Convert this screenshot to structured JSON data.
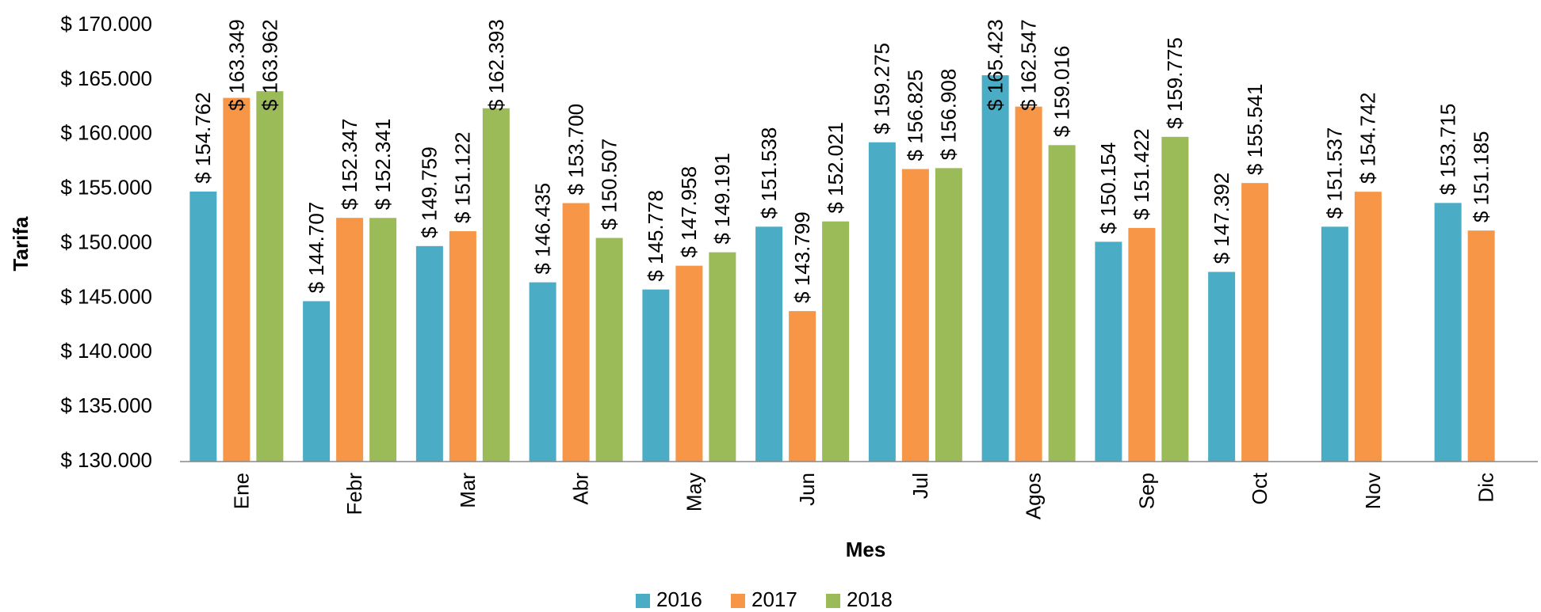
{
  "chart_data": {
    "type": "bar",
    "x_label": "Mes",
    "y_label": "Tarifa",
    "categories": [
      "Ene",
      "Febr",
      "Mar",
      "Abr",
      "May",
      "Jun",
      "Jul",
      "Agos",
      "Sep",
      "Oct",
      "Nov",
      "Dic"
    ],
    "series": [
      {
        "name": "2016",
        "color": "#4bacc6",
        "values": [
          154762,
          144707,
          149759,
          146435,
          145778,
          151538,
          159275,
          165423,
          150154,
          147392,
          151537,
          153715
        ],
        "value_labels": [
          "$ 154.762",
          "$ 144.707",
          "$ 149.759",
          "$ 146.435",
          "$ 145.778",
          "$ 151.538",
          "$ 159.275",
          "$ 165.423",
          "$ 150.154",
          "$ 147.392",
          "$ 151.537",
          "$ 153.715"
        ]
      },
      {
        "name": "2017",
        "color": "#f79646",
        "values": [
          163349,
          152347,
          151122,
          153700,
          147958,
          143799,
          156825,
          162547,
          151422,
          155541,
          154742,
          151185
        ],
        "value_labels": [
          "$ 163.349",
          "$ 152.347",
          "$ 151.122",
          "$ 153.700",
          "$ 147.958",
          "$ 143.799",
          "$ 156.825",
          "$ 162.547",
          "$ 151.422",
          "$ 155.541",
          "$ 154.742",
          "$ 151.185"
        ]
      },
      {
        "name": "2018",
        "color": "#9bbb59",
        "values": [
          163962,
          152341,
          162393,
          150507,
          149191,
          152021,
          156908,
          159016,
          159775,
          null,
          null,
          null
        ],
        "value_labels": [
          "$ 163.962",
          "$ 152.341",
          "$ 162.393",
          "$ 150.507",
          "$ 149.191",
          "$ 152.021",
          "$ 156.908",
          "$ 159.016",
          "$ 159.775",
          null,
          null,
          null
        ]
      }
    ],
    "ylim": [
      130000,
      170000
    ],
    "yticks": [
      {
        "value": 130000,
        "label": "$ 130.000"
      },
      {
        "value": 135000,
        "label": "$ 135.000"
      },
      {
        "value": 140000,
        "label": "$ 140.000"
      },
      {
        "value": 145000,
        "label": "$ 145.000"
      },
      {
        "value": 150000,
        "label": "$ 150.000"
      },
      {
        "value": 155000,
        "label": "$ 155.000"
      },
      {
        "value": 160000,
        "label": "$ 160.000"
      },
      {
        "value": 165000,
        "label": "$ 165.000"
      },
      {
        "value": 170000,
        "label": "$ 170.000"
      }
    ],
    "legend": "bottom"
  }
}
